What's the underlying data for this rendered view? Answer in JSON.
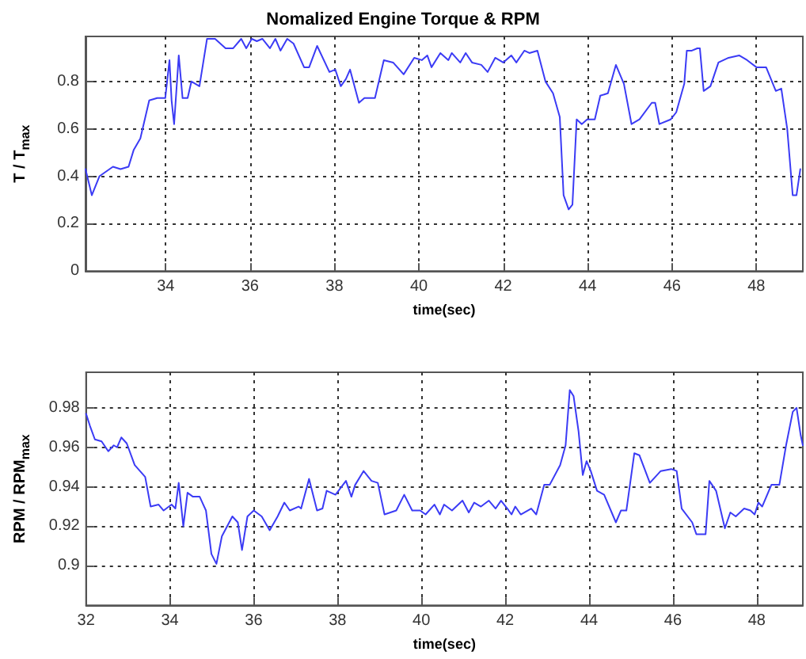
{
  "chart_data": [
    {
      "type": "line",
      "title": "Nomalized Engine Torque & RPM",
      "xlabel": "time(sec)",
      "ylabel": "T / T$_{max}$",
      "xlim": [
        32.1,
        49.1
      ],
      "xticks": [
        34,
        36,
        38,
        40,
        42,
        44,
        46,
        48
      ],
      "ylim": [
        0,
        0.99
      ],
      "yticks": [
        0,
        0.2,
        0.4,
        0.6,
        0.8
      ],
      "grid": true,
      "marker": "none",
      "line_style": "solid",
      "series": [
        {
          "color": "#3b3bf5",
          "x": [
            32.1,
            32.25,
            32.43,
            32.75,
            32.93,
            33.12,
            33.24,
            33.4,
            33.61,
            33.8,
            33.99,
            34.09,
            34.14,
            34.2,
            34.31,
            34.4,
            34.52,
            34.61,
            34.8,
            34.98,
            35.17,
            35.42,
            35.6,
            35.79,
            35.91,
            36.04,
            36.16,
            36.29,
            36.47,
            36.6,
            36.72,
            36.88,
            37.03,
            37.28,
            37.4,
            37.59,
            37.88,
            38.02,
            38.15,
            38.27,
            38.37,
            38.58,
            38.71,
            38.96,
            39.17,
            39.39,
            39.64,
            39.89,
            40.07,
            40.2,
            40.3,
            40.51,
            40.7,
            40.78,
            40.98,
            41.11,
            41.26,
            41.48,
            41.63,
            41.81,
            42.0,
            42.19,
            42.31,
            42.5,
            42.62,
            42.81,
            43.0,
            43.18,
            43.34,
            43.43,
            43.55,
            43.64,
            43.74,
            43.86,
            43.99,
            44.17,
            44.3,
            44.48,
            44.67,
            44.86,
            45.04,
            45.23,
            45.52,
            45.6,
            45.7,
            45.97,
            46.1,
            46.29,
            46.35,
            46.47,
            46.6,
            46.66,
            46.75,
            46.91,
            47.1,
            47.34,
            47.59,
            47.78,
            48.0,
            48.23,
            48.46,
            48.59,
            48.73,
            48.86,
            48.95,
            49.04
          ],
          "values": [
            0.43,
            0.32,
            0.4,
            0.44,
            0.43,
            0.44,
            0.51,
            0.56,
            0.72,
            0.73,
            0.73,
            0.89,
            0.72,
            0.62,
            0.91,
            0.73,
            0.73,
            0.8,
            0.78,
            0.98,
            0.98,
            0.94,
            0.94,
            0.98,
            0.94,
            0.98,
            0.97,
            0.98,
            0.94,
            0.98,
            0.93,
            0.98,
            0.96,
            0.86,
            0.86,
            0.95,
            0.84,
            0.85,
            0.78,
            0.81,
            0.85,
            0.71,
            0.73,
            0.73,
            0.89,
            0.88,
            0.83,
            0.9,
            0.89,
            0.91,
            0.86,
            0.92,
            0.89,
            0.92,
            0.88,
            0.92,
            0.88,
            0.87,
            0.84,
            0.9,
            0.88,
            0.91,
            0.88,
            0.93,
            0.92,
            0.93,
            0.8,
            0.75,
            0.65,
            0.32,
            0.26,
            0.28,
            0.64,
            0.62,
            0.64,
            0.64,
            0.74,
            0.75,
            0.87,
            0.79,
            0.62,
            0.64,
            0.71,
            0.71,
            0.62,
            0.64,
            0.67,
            0.79,
            0.93,
            0.93,
            0.94,
            0.94,
            0.76,
            0.78,
            0.88,
            0.9,
            0.91,
            0.89,
            0.86,
            0.86,
            0.76,
            0.77,
            0.6,
            0.32,
            0.32,
            0.43
          ]
        }
      ]
    },
    {
      "type": "line",
      "xlabel": "time(sec)",
      "ylabel": "RPM / RPM$_{max}$",
      "xlim": [
        32,
        49.1
      ],
      "xticks": [
        32,
        34,
        36,
        38,
        40,
        42,
        44,
        46,
        48
      ],
      "ylim": [
        0.88,
        0.998
      ],
      "yticks": [
        0.9,
        0.92,
        0.94,
        0.96,
        0.98
      ],
      "grid": true,
      "marker": "none",
      "line_style": "solid",
      "series": [
        {
          "color": "#3b3bf5",
          "x": [
            32.0,
            32.09,
            32.21,
            32.37,
            32.53,
            32.66,
            32.74,
            32.84,
            32.97,
            33.16,
            33.41,
            33.54,
            33.73,
            33.85,
            34.04,
            34.13,
            34.21,
            34.32,
            34.42,
            34.55,
            34.71,
            34.86,
            34.99,
            35.11,
            35.24,
            35.49,
            35.62,
            35.72,
            35.85,
            36.0,
            36.19,
            36.38,
            36.57,
            36.73,
            36.86,
            37.07,
            37.13,
            37.32,
            37.51,
            37.64,
            37.74,
            37.95,
            38.2,
            38.33,
            38.42,
            38.62,
            38.81,
            38.96,
            39.12,
            39.4,
            39.59,
            39.78,
            39.97,
            40.1,
            40.31,
            40.44,
            40.54,
            40.73,
            40.98,
            41.13,
            41.26,
            41.42,
            41.61,
            41.77,
            41.9,
            42.05,
            42.15,
            42.24,
            42.37,
            42.62,
            42.74,
            42.93,
            43.06,
            43.31,
            43.44,
            43.54,
            43.63,
            43.75,
            43.85,
            43.94,
            44.04,
            44.19,
            44.36,
            44.64,
            44.76,
            44.89,
            45.08,
            45.2,
            45.45,
            45.71,
            45.96,
            46.09,
            46.21,
            46.46,
            46.56,
            46.78,
            46.87,
            47.03,
            47.24,
            47.37,
            47.5,
            47.7,
            47.85,
            47.95,
            48.04,
            48.13,
            48.35,
            48.54,
            48.7,
            48.86,
            48.95,
            49.05,
            49.1
          ],
          "values": [
            0.977,
            0.971,
            0.964,
            0.963,
            0.958,
            0.961,
            0.96,
            0.965,
            0.962,
            0.951,
            0.945,
            0.93,
            0.931,
            0.928,
            0.931,
            0.929,
            0.942,
            0.92,
            0.937,
            0.935,
            0.935,
            0.928,
            0.906,
            0.901,
            0.915,
            0.925,
            0.922,
            0.908,
            0.925,
            0.928,
            0.925,
            0.918,
            0.925,
            0.932,
            0.928,
            0.93,
            0.929,
            0.944,
            0.928,
            0.929,
            0.938,
            0.936,
            0.943,
            0.935,
            0.941,
            0.948,
            0.943,
            0.942,
            0.926,
            0.928,
            0.936,
            0.928,
            0.928,
            0.926,
            0.931,
            0.926,
            0.931,
            0.928,
            0.933,
            0.927,
            0.932,
            0.93,
            0.933,
            0.929,
            0.933,
            0.929,
            0.926,
            0.93,
            0.926,
            0.929,
            0.926,
            0.941,
            0.941,
            0.951,
            0.961,
            0.989,
            0.986,
            0.968,
            0.946,
            0.953,
            0.948,
            0.938,
            0.936,
            0.922,
            0.928,
            0.928,
            0.957,
            0.956,
            0.942,
            0.948,
            0.949,
            0.948,
            0.929,
            0.922,
            0.916,
            0.916,
            0.943,
            0.938,
            0.919,
            0.927,
            0.925,
            0.929,
            0.928,
            0.926,
            0.932,
            0.93,
            0.941,
            0.941,
            0.961,
            0.978,
            0.98,
            0.966,
            0.961
          ]
        }
      ]
    }
  ]
}
